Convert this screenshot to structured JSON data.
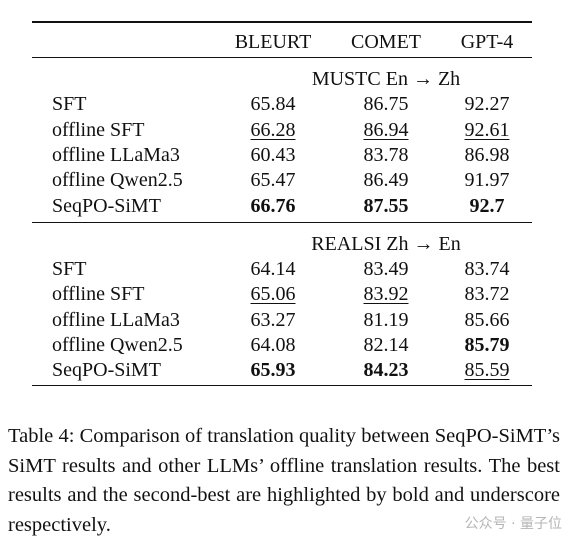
{
  "table": {
    "columns": [
      "BLEURT",
      "COMET",
      "GPT-4"
    ],
    "sections": [
      {
        "title": "MUSTC En → Zh",
        "rows": [
          {
            "label": "SFT",
            "values": [
              65.84,
              86.75,
              92.27
            ],
            "bold": [],
            "underline": []
          },
          {
            "label": "offline SFT",
            "values": [
              66.28,
              86.94,
              92.61
            ],
            "bold": [],
            "underline": [
              0,
              1,
              2
            ]
          },
          {
            "label": "offline LLaMa3",
            "values": [
              60.43,
              83.78,
              86.98
            ],
            "bold": [],
            "underline": []
          },
          {
            "label": "offline Qwen2.5",
            "values": [
              65.47,
              86.49,
              91.97
            ],
            "bold": [],
            "underline": []
          },
          {
            "label": "SeqPO-SiMT",
            "values": [
              66.76,
              87.55,
              92.7
            ],
            "bold": [
              0,
              1,
              2
            ],
            "underline": []
          }
        ]
      },
      {
        "title": "REALSI Zh → En",
        "rows": [
          {
            "label": "SFT",
            "values": [
              64.14,
              83.49,
              83.74
            ],
            "bold": [],
            "underline": []
          },
          {
            "label": "offline SFT",
            "values": [
              65.06,
              83.92,
              83.72
            ],
            "bold": [],
            "underline": [
              0,
              1
            ]
          },
          {
            "label": "offline LLaMa3",
            "values": [
              63.27,
              81.19,
              85.66
            ],
            "bold": [],
            "underline": []
          },
          {
            "label": "offline Qwen2.5",
            "values": [
              64.08,
              82.14,
              85.79
            ],
            "bold": [
              2
            ],
            "underline": []
          },
          {
            "label": "SeqPO-SiMT",
            "values": [
              65.93,
              84.23,
              85.59
            ],
            "bold": [
              0,
              1
            ],
            "underline": [
              2
            ]
          }
        ]
      }
    ]
  },
  "caption": "Table 4: Comparison of translation quality between SeqPO-SiMT’s SiMT results and other LLMs’ offline translation results. The best results and the second-best are highlighted by bold and underscore respectively.",
  "watermark": "公众号 · 量子位"
}
